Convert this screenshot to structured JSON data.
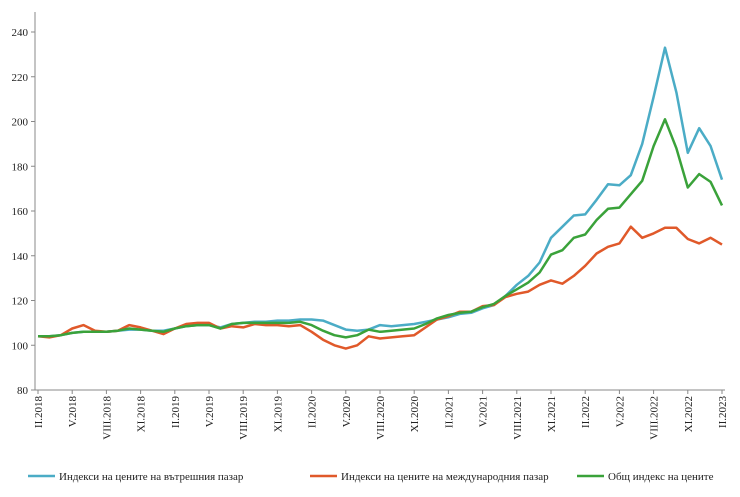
{
  "chart_data": {
    "type": "line",
    "categories": [
      "II.2018",
      null,
      null,
      "V.2018",
      null,
      null,
      "VIII.2018",
      null,
      null,
      "XI.2018",
      null,
      null,
      "II.2019",
      null,
      null,
      "V.2019",
      null,
      null,
      "VIII.2019",
      null,
      null,
      "XI.2019",
      null,
      null,
      "II.2020",
      null,
      null,
      "V.2020",
      null,
      null,
      "VIII.2020",
      null,
      null,
      "XI.2020",
      null,
      null,
      "II.2021",
      null,
      null,
      "V.2021",
      null,
      null,
      "VIII.2021",
      null,
      null,
      "XI.2021",
      null,
      null,
      "II.2022",
      null,
      null,
      "V.2022",
      null,
      null,
      "VIII.2022",
      null,
      null,
      "XI.2022",
      null,
      null,
      "II.2023"
    ],
    "series": [
      {
        "name": "Индекси на цените на вътрешния пазар",
        "color": "#4bacc6",
        "values": [
          104,
          104,
          104.5,
          105.5,
          106,
          106,
          106,
          106.5,
          107,
          107,
          106.5,
          106.5,
          107.5,
          108.5,
          109,
          109,
          108,
          109.5,
          110,
          110.5,
          110.5,
          111,
          111,
          111.5,
          111.5,
          111,
          109,
          107,
          106.5,
          107,
          109,
          108.5,
          109,
          109.5,
          110.5,
          111.5,
          112.5,
          114,
          114.5,
          116.5,
          118,
          122,
          127,
          131,
          137,
          148,
          153,
          158,
          158.5,
          165,
          172,
          171.5,
          176,
          190,
          211,
          233,
          213,
          186,
          197,
          189,
          174
        ]
      },
      {
        "name": "Индекси на цените на международния пазар",
        "color": "#e0592a",
        "values": [
          104,
          103.5,
          104.5,
          107.5,
          109,
          106.5,
          106,
          106.5,
          109,
          108,
          106.5,
          105,
          107.5,
          109.5,
          110,
          110,
          107.5,
          108.5,
          108,
          109.5,
          109,
          109,
          108.5,
          109,
          106,
          102.5,
          100,
          98.5,
          100,
          104,
          103,
          103.5,
          104,
          104.5,
          108,
          111.5,
          113,
          115,
          115,
          117.5,
          118,
          121.5,
          123,
          124,
          127,
          129,
          127.5,
          131,
          135.5,
          141,
          144,
          145.5,
          153,
          148,
          150,
          152.5,
          152.5,
          147.5,
          145.5,
          148,
          145
        ]
      },
      {
        "name": "Общ индекс на цените",
        "color": "#3aa23a",
        "values": [
          104,
          104,
          104.5,
          105.5,
          106,
          106,
          106,
          106.5,
          107.5,
          107,
          106.5,
          106,
          107.5,
          108.5,
          109,
          109,
          107.5,
          109.5,
          110,
          110,
          110,
          110,
          110,
          110.5,
          109,
          106.5,
          104.5,
          103.5,
          104.5,
          107,
          106,
          106.5,
          107,
          107.5,
          109.5,
          112,
          113.5,
          114.5,
          115,
          117,
          118.5,
          122,
          125,
          128,
          132.5,
          140.5,
          142.5,
          148,
          149.5,
          156,
          161,
          161.5,
          167.5,
          173.5,
          189,
          201,
          188,
          170.5,
          176.5,
          173,
          162.5
        ]
      }
    ],
    "ylim": [
      80,
      240
    ],
    "yticks": [
      80,
      100,
      120,
      140,
      160,
      180,
      200,
      220,
      240
    ],
    "grid": false
  }
}
